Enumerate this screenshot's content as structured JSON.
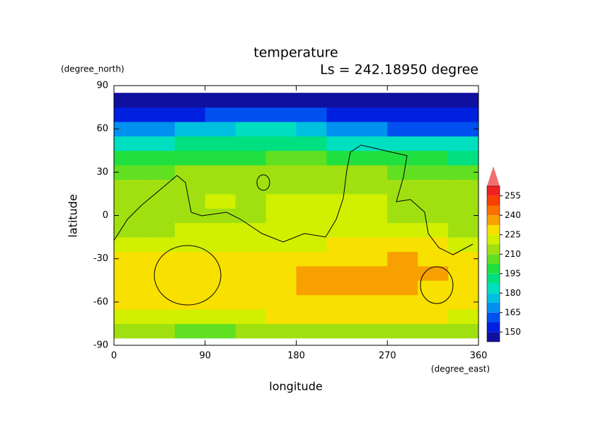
{
  "chart_data": {
    "type": "contour",
    "title": "temperature",
    "subtitle": "Ls = 242.18950 degree",
    "xlabel": "longitude",
    "ylabel": "latitude",
    "xunit": "(degree_east)",
    "yunit": "(degree_north)",
    "xlim": [
      0,
      360
    ],
    "xticks": [
      0,
      90,
      180,
      270,
      360
    ],
    "ylim": [
      -90,
      90
    ],
    "yticks": [
      -90,
      -60,
      -30,
      0,
      30,
      60,
      90
    ],
    "x": [
      15,
      45,
      75,
      105,
      135,
      165,
      195,
      225,
      255,
      285,
      315,
      345
    ],
    "y": [
      -80,
      -70,
      -60,
      -50,
      -40,
      -30,
      -20,
      -10,
      0,
      10,
      20,
      30,
      40,
      50,
      60,
      70,
      80
    ],
    "z": [
      [
        212,
        210,
        208,
        208,
        212,
        214,
        214,
        212,
        210,
        210,
        210,
        212
      ],
      [
        222,
        222,
        224,
        224,
        224,
        226,
        228,
        228,
        226,
        226,
        226,
        224
      ],
      [
        227,
        227,
        228,
        228,
        228,
        229,
        231,
        231,
        231,
        230,
        229,
        229
      ],
      [
        228,
        228,
        228,
        228,
        228,
        228,
        233,
        234,
        234,
        233,
        230,
        229
      ],
      [
        227,
        228,
        228,
        228,
        228,
        230,
        234,
        234,
        235,
        238,
        233,
        232
      ],
      [
        225,
        226,
        226,
        226,
        226,
        226,
        228,
        230,
        232,
        233,
        232,
        230
      ],
      [
        222,
        224,
        224,
        224,
        222,
        222,
        224,
        226,
        226,
        226,
        226,
        224
      ],
      [
        216,
        216,
        218,
        218,
        218,
        222,
        224,
        224,
        222,
        220,
        218,
        216
      ],
      [
        214,
        212,
        214,
        216,
        214,
        218,
        222,
        222,
        218,
        216,
        214,
        214
      ],
      [
        214,
        214,
        216,
        218,
        216,
        218,
        220,
        220,
        218,
        216,
        214,
        214
      ],
      [
        212,
        212,
        214,
        216,
        214,
        214,
        214,
        216,
        214,
        214,
        212,
        212
      ],
      [
        206,
        208,
        210,
        210,
        210,
        210,
        210,
        210,
        210,
        208,
        206,
        206
      ],
      [
        196,
        198,
        200,
        202,
        202,
        204,
        206,
        202,
        200,
        198,
        196,
        194
      ],
      [
        184,
        186,
        190,
        192,
        192,
        192,
        194,
        186,
        182,
        180,
        180,
        180
      ],
      [
        168,
        170,
        174,
        178,
        180,
        180,
        176,
        168,
        166,
        164,
        164,
        164
      ],
      [
        152,
        154,
        156,
        160,
        162,
        160,
        158,
        154,
        152,
        152,
        152,
        152
      ],
      [
        146,
        146,
        146,
        146,
        146,
        146,
        146,
        146,
        146,
        146,
        146,
        146
      ]
    ],
    "colorbar": {
      "levels": [
        142.5,
        150,
        157.5,
        165,
        172.5,
        180,
        187.5,
        195,
        202.5,
        210,
        217.5,
        225,
        232.5,
        240,
        247.5,
        255,
        262.5
      ],
      "colors": [
        "#1010a0",
        "#0020e0",
        "#0050f0",
        "#0090f0",
        "#00c0e0",
        "#00e0c0",
        "#00e080",
        "#20e040",
        "#60e020",
        "#a0e010",
        "#d0f000",
        "#f8e000",
        "#f8a000",
        "#f87000",
        "#f84000",
        "#f02020"
      ],
      "extend_color": "#f07070",
      "ticks": [
        150,
        165,
        180,
        195,
        210,
        225,
        240,
        255
      ]
    }
  }
}
